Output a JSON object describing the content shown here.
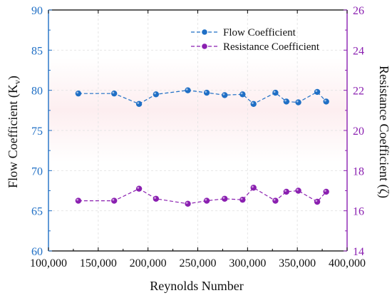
{
  "chart_data": {
    "type": "line",
    "title": "",
    "xlabel": "Reynolds Number",
    "ylabel_left_base": "Flow Coefficient (K",
    "ylabel_left_sub": "v",
    "ylabel_left_close": ")",
    "ylabel_right": "Resistance Coefficient (ζ)",
    "xlim": [
      100000,
      400000
    ],
    "ylim_left": [
      60,
      90
    ],
    "ylim_right": [
      14,
      26
    ],
    "x_ticks": [
      100000,
      150000,
      200000,
      250000,
      300000,
      350000,
      400000
    ],
    "x_tick_labels": [
      "100,000",
      "150,000",
      "200,000",
      "250,000",
      "300,000",
      "350,000",
      "400,000"
    ],
    "y_left_ticks": [
      60,
      65,
      70,
      75,
      80,
      85,
      90
    ],
    "y_left_tick_labels": [
      "60",
      "65",
      "70",
      "75",
      "80",
      "85",
      "90"
    ],
    "y_right_ticks": [
      14,
      16,
      18,
      20,
      22,
      24,
      26
    ],
    "y_right_tick_labels": [
      "14",
      "16",
      "18",
      "20",
      "22",
      "24",
      "26"
    ],
    "legend_position": "top-right",
    "series": [
      {
        "name": "Flow Coefficient",
        "axis": "left",
        "color": "#1f6fc5",
        "points": [
          [
            130000,
            79.6
          ],
          [
            166000,
            79.6
          ],
          [
            191000,
            78.3
          ],
          [
            208000,
            79.5
          ],
          [
            240000,
            80.0
          ],
          [
            259000,
            79.7
          ],
          [
            277000,
            79.4
          ],
          [
            295000,
            79.5
          ],
          [
            306000,
            78.3
          ],
          [
            328000,
            79.7
          ],
          [
            339000,
            78.6
          ],
          [
            351000,
            78.5
          ],
          [
            370000,
            79.8
          ],
          [
            379000,
            78.6
          ]
        ]
      },
      {
        "name": "Resistance Coefficient",
        "axis": "right",
        "color": "#8a1fb0",
        "points": [
          [
            130000,
            16.5
          ],
          [
            166000,
            16.5
          ],
          [
            191000,
            17.1
          ],
          [
            208000,
            16.6
          ],
          [
            240000,
            16.35
          ],
          [
            259000,
            16.5
          ],
          [
            277000,
            16.6
          ],
          [
            295000,
            16.55
          ],
          [
            306000,
            17.15
          ],
          [
            328000,
            16.5
          ],
          [
            339000,
            16.95
          ],
          [
            351000,
            17.0
          ],
          [
            370000,
            16.45
          ],
          [
            379000,
            16.95
          ]
        ]
      }
    ]
  }
}
